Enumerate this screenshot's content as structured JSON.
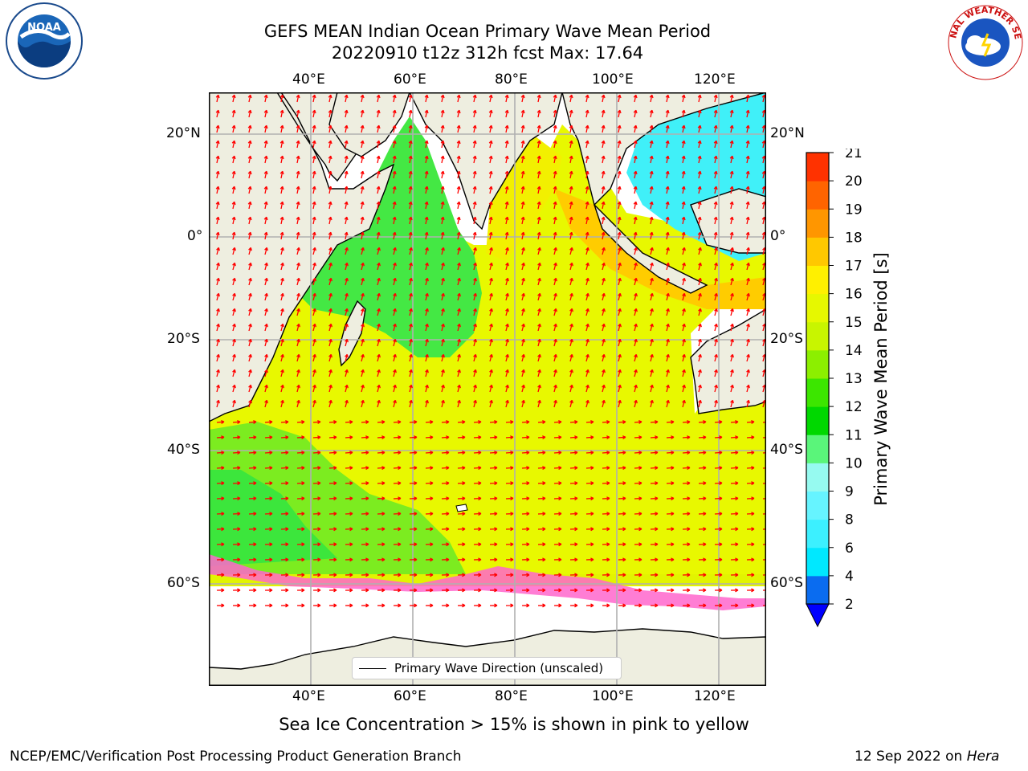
{
  "title": {
    "line1": "GEFS MEAN Indian Ocean Primary Wave Mean Period",
    "line2": "20220910 t12z 312h fcst   Max: 17.64"
  },
  "logos": {
    "noaa_text": "NOAA",
    "nws_text": "NATIONAL WEATHER SERVICE"
  },
  "map": {
    "lon_ticks": [
      "40°E",
      "60°E",
      "80°E",
      "100°E",
      "120°E"
    ],
    "lat_ticks": [
      "20°N",
      "0°",
      "20°S",
      "40°S",
      "60°S"
    ],
    "land_color": "#eeeee0",
    "grid_color": "#b0b0b0",
    "arrow_color": "#ff0000",
    "legend_label": "Primary Wave Direction (unscaled)"
  },
  "colorbar": {
    "label": "Primary Wave Mean Period [s]",
    "ticks": [
      "2",
      "4",
      "6",
      "8",
      "9",
      "10",
      "11",
      "12",
      "13",
      "14",
      "15",
      "16",
      "17",
      "18",
      "19",
      "20",
      "21"
    ],
    "colors": [
      "#0a6cf0",
      "#00e8ff",
      "#3cf0ff",
      "#66f4ff",
      "#96faf0",
      "#5af57a",
      "#00d800",
      "#3ce600",
      "#8cef00",
      "#c8f500",
      "#e6f800",
      "#fff000",
      "#ffc800",
      "#ff9600",
      "#ff6400",
      "#ff3200",
      "#ff0000"
    ],
    "extend_color": "#0000ff"
  },
  "subtitle": "Sea Ice Concentration > 15% is shown in pink to yellow",
  "footer": {
    "left": "NCEP/EMC/Verification Post Processing Product Generation Branch",
    "right_prefix": "12 Sep 2022 on ",
    "right_host": "Hera"
  }
}
